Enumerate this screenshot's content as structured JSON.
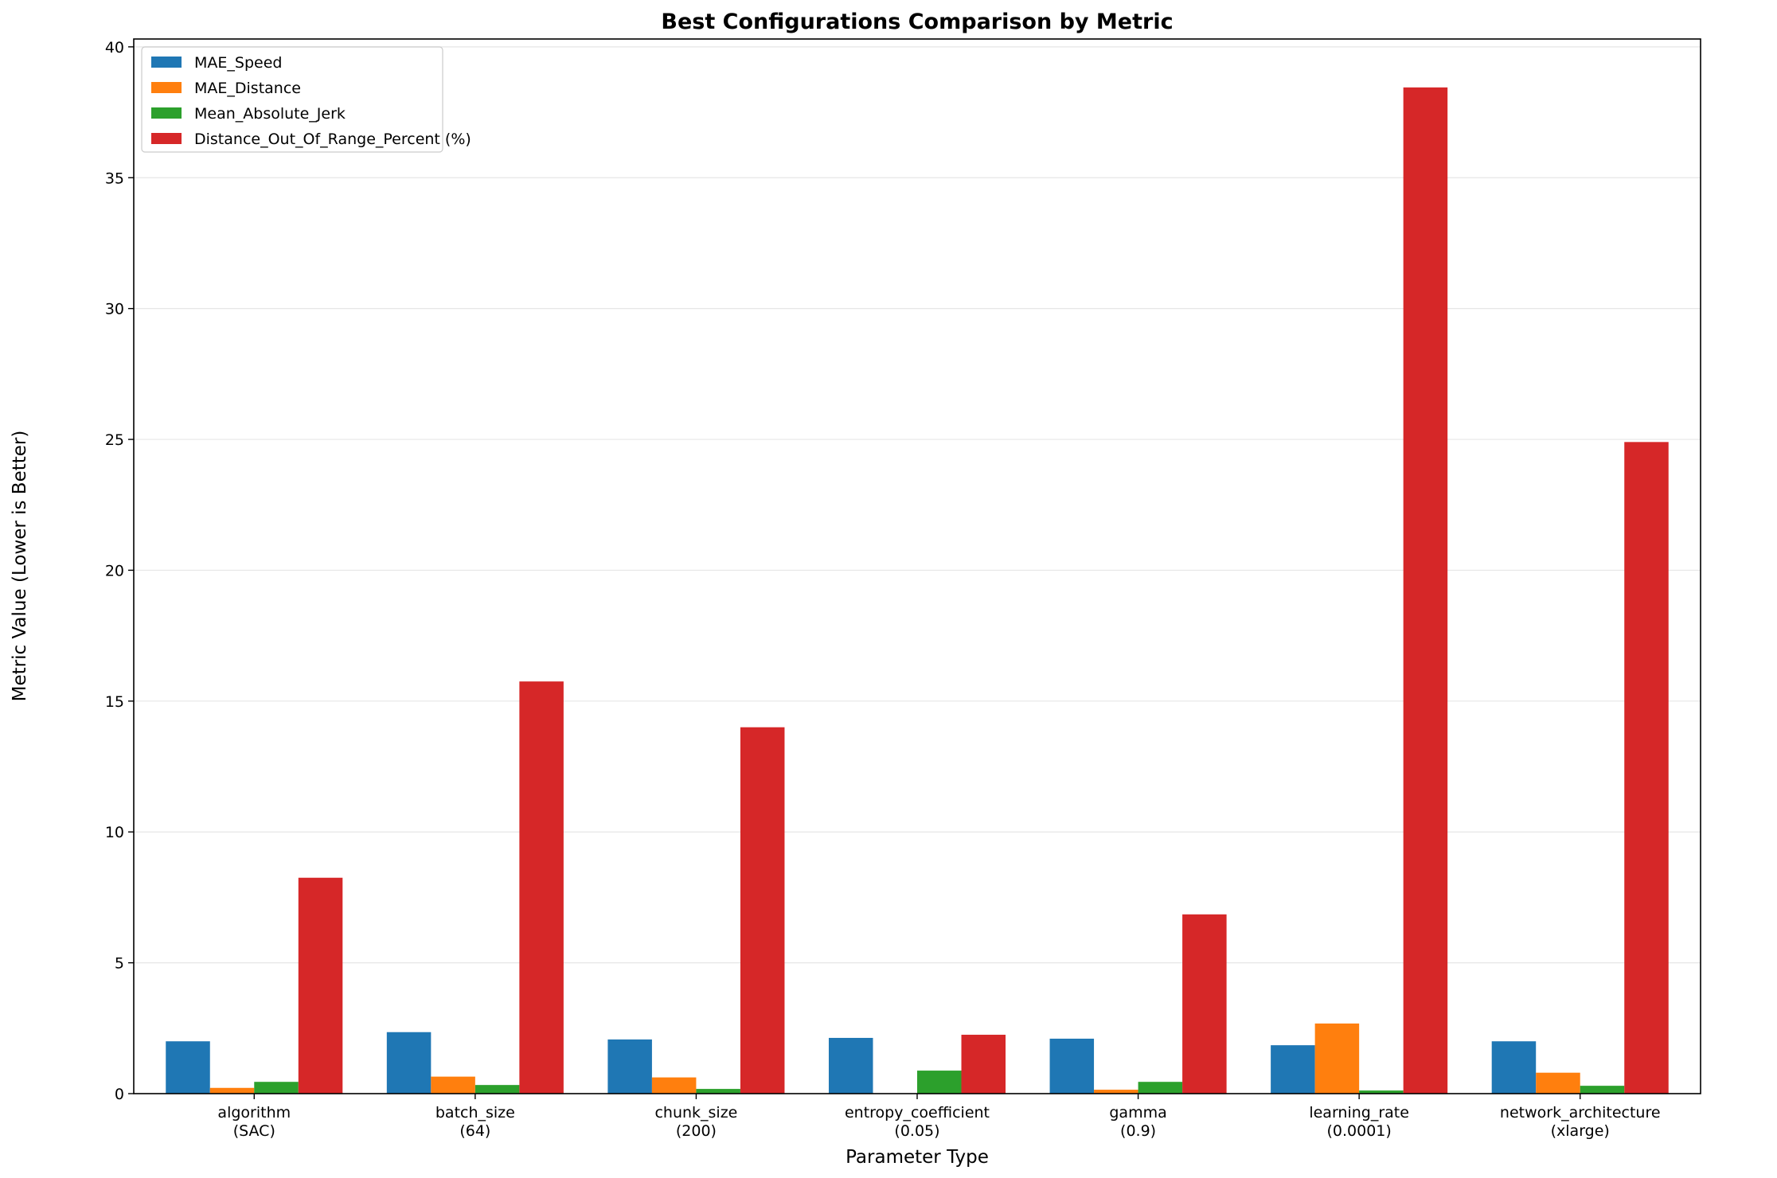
{
  "chart_data": {
    "type": "bar",
    "title": "Best Configurations Comparison by Metric",
    "xlabel": "Parameter Type",
    "ylabel": "Metric Value (Lower is Better)",
    "ylim": [
      0,
      40.3
    ],
    "yticks": [
      0,
      5,
      10,
      15,
      20,
      25,
      30,
      35,
      40
    ],
    "grid": "horizontal",
    "legend_position": "top-left",
    "categories": [
      [
        "algorithm",
        "(SAC)"
      ],
      [
        "batch_size",
        "(64)"
      ],
      [
        "chunk_size",
        "(200)"
      ],
      [
        "entropy_coefficient",
        "(0.05)"
      ],
      [
        "gamma",
        "(0.9)"
      ],
      [
        "learning_rate",
        "(0.0001)"
      ],
      [
        "network_architecture",
        "(xlarge)"
      ]
    ],
    "series": [
      {
        "name": "MAE_Speed",
        "color": "#1f77b4",
        "values": [
          2.0,
          2.35,
          2.07,
          2.13,
          2.1,
          1.85,
          2.0
        ]
      },
      {
        "name": "MAE_Distance",
        "color": "#ff7f0e",
        "values": [
          0.22,
          0.65,
          0.62,
          0.0,
          0.15,
          2.68,
          0.8
        ]
      },
      {
        "name": "Mean_Absolute_Jerk",
        "color": "#2ca02c",
        "values": [
          0.45,
          0.33,
          0.18,
          0.88,
          0.45,
          0.12,
          0.3
        ]
      },
      {
        "name": "Distance_Out_Of_Range_Percent (%)",
        "color": "#d62728",
        "values": [
          8.25,
          15.75,
          14.0,
          2.25,
          6.85,
          38.45,
          24.9
        ]
      }
    ]
  }
}
